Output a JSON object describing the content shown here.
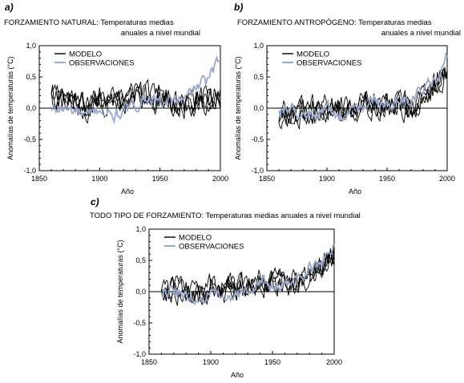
{
  "figure": {
    "colors": {
      "model": "#000000",
      "observations": "#98a8cc",
      "axis": "#000000"
    },
    "legend": {
      "model_label": "MODELO",
      "obs_label": "OBSERVACIONES"
    },
    "ylabel": "Anomalías de temperaturas (°C)",
    "xlabel": "Año"
  },
  "chart_data": [
    {
      "type": "line",
      "panel_letter": "a)",
      "title_lines": [
        "FORZAMIENTO NATURAL: Temperaturas medias",
        "anuales a nivel mundial"
      ],
      "xlabel": "Año",
      "ylabel": "Anomalías de temperaturas (°C)",
      "xlim": [
        1850,
        2000
      ],
      "ylim": [
        -1.0,
        1.0
      ],
      "xticks": [
        "1850",
        "1900",
        "1950",
        "2000"
      ],
      "yticks": [
        "1,0",
        "0,5",
        "0,0",
        "-0,5",
        "-1,0"
      ],
      "legend": [
        "MODELO",
        "OBSERVACIONES"
      ],
      "model_band": {
        "description": "ensemble of 4 model runs, annual values 1860-2000",
        "x": [
          1860,
          1870,
          1880,
          1890,
          1900,
          1910,
          1920,
          1930,
          1940,
          1950,
          1960,
          1970,
          1980,
          1990,
          2000
        ],
        "y_mean": [
          0.2,
          0.18,
          0.1,
          0.0,
          0.15,
          0.1,
          0.12,
          0.2,
          0.18,
          0.15,
          0.1,
          0.05,
          0.12,
          0.15,
          0.15
        ]
      },
      "observations": {
        "x": [
          1860,
          1870,
          1880,
          1890,
          1900,
          1910,
          1920,
          1930,
          1940,
          1950,
          1960,
          1970,
          1980,
          1990,
          2000
        ],
        "y": [
          -0.05,
          0.0,
          -0.05,
          -0.15,
          0.0,
          -0.15,
          -0.05,
          0.05,
          0.2,
          0.05,
          0.15,
          0.1,
          0.35,
          0.45,
          0.8
        ]
      }
    },
    {
      "type": "line",
      "panel_letter": "b)",
      "title_lines": [
        "FORZAMIENTO ANTROPÓGENO: Temperaturas medias",
        "anuales a nivel mundial"
      ],
      "xlabel": "Año",
      "ylabel": "Anomalías de temperaturas (°C)",
      "xlim": [
        1850,
        2000
      ],
      "ylim": [
        -1.0,
        1.0
      ],
      "xticks": [
        "1850",
        "1900",
        "1950",
        "2000"
      ],
      "yticks": [
        "1,0",
        "0,5",
        "0,0",
        "-0,5",
        "-1,0"
      ],
      "legend": [
        "MODELO",
        "OBSERVACIONES"
      ],
      "model_band": {
        "description": "ensemble of 4 model runs, annual values 1860-2000",
        "x": [
          1860,
          1870,
          1880,
          1890,
          1900,
          1910,
          1920,
          1930,
          1940,
          1950,
          1960,
          1970,
          1980,
          1990,
          2000
        ],
        "y_mean": [
          -0.08,
          -0.05,
          -0.05,
          -0.03,
          0.0,
          0.0,
          0.02,
          0.03,
          0.05,
          0.02,
          0.0,
          0.05,
          0.2,
          0.35,
          0.6
        ]
      },
      "observations": {
        "x": [
          1860,
          1870,
          1880,
          1890,
          1900,
          1910,
          1920,
          1930,
          1940,
          1950,
          1960,
          1970,
          1980,
          1990,
          2000
        ],
        "y": [
          -0.05,
          0.0,
          -0.05,
          -0.15,
          0.0,
          -0.15,
          -0.05,
          0.05,
          0.2,
          0.05,
          0.15,
          0.1,
          0.35,
          0.45,
          0.8
        ]
      }
    },
    {
      "type": "line",
      "panel_letter": "c)",
      "title_lines": [
        "TODO TIPO DE FORZAMIENTO: Temperaturas medias anuales a nivel mundial"
      ],
      "xlabel": "Año",
      "ylabel": "Anomalías de temperaturas (°C)",
      "xlim": [
        1850,
        2000
      ],
      "ylim": [
        -1.0,
        1.0
      ],
      "xticks": [
        "1850",
        "1900",
        "1950",
        "2000"
      ],
      "yticks": [
        "1,0",
        "0,5",
        "0,0",
        "-0,5",
        "-1,0"
      ],
      "legend": [
        "MODELO",
        "OBSERVACIONES"
      ],
      "model_band": {
        "description": "ensemble of 4 model runs, annual values 1860-2000",
        "x": [
          1860,
          1870,
          1880,
          1890,
          1900,
          1910,
          1920,
          1930,
          1940,
          1950,
          1960,
          1970,
          1980,
          1990,
          2000
        ],
        "y_mean": [
          0.05,
          0.05,
          0.0,
          -0.05,
          0.05,
          0.0,
          0.05,
          0.1,
          0.15,
          0.15,
          0.12,
          0.1,
          0.3,
          0.4,
          0.65
        ]
      },
      "observations": {
        "x": [
          1860,
          1870,
          1880,
          1890,
          1900,
          1910,
          1920,
          1930,
          1940,
          1950,
          1960,
          1970,
          1980,
          1990,
          2000
        ],
        "y": [
          -0.05,
          0.0,
          -0.05,
          -0.15,
          0.0,
          -0.15,
          -0.05,
          0.05,
          0.2,
          0.05,
          0.15,
          0.1,
          0.35,
          0.45,
          0.8
        ]
      }
    }
  ]
}
